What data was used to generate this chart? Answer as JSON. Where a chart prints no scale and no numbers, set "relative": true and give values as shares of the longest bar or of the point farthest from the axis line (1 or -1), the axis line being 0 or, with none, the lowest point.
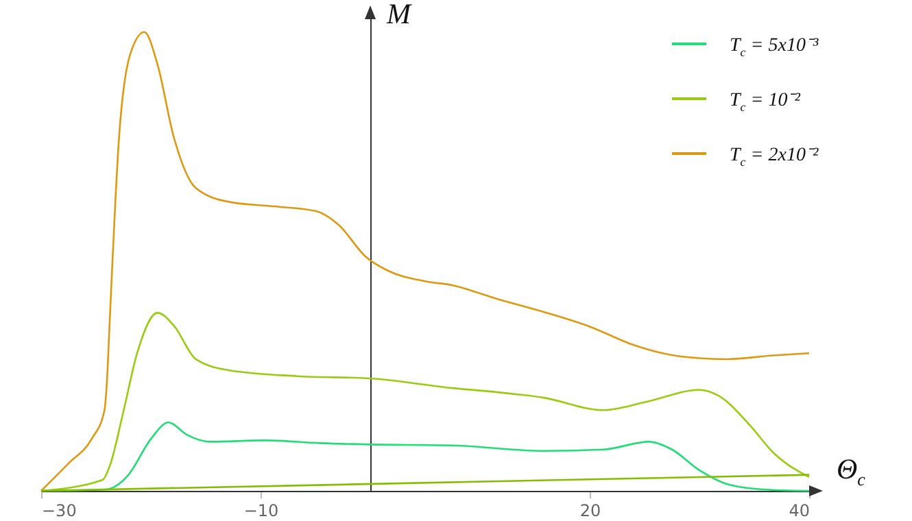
{
  "chart_data": {
    "type": "line",
    "relative": true,
    "xlabel": "Θ$_{c}$",
    "ylabel": "M",
    "xlim": [
      -30,
      40
    ],
    "xticks": [
      -30,
      -10,
      20,
      40
    ],
    "legend": "top right",
    "marker": "none",
    "line_style": "solid",
    "grid": false,
    "series": [
      {
        "name": "T$_{c}$ = 5x10⁻³",
        "color": "#22dd77",
        "x": [
          -30,
          -24.1,
          -22.1,
          -20,
          -18.4,
          -16.7,
          -14.6,
          -9.6,
          -4.6,
          0,
          7.5,
          15.8,
          21.25,
          25.4,
          27.5,
          30,
          32.5,
          35.9,
          40
        ],
        "values": [
          0,
          0.003,
          0.033,
          0.113,
          0.149,
          0.122,
          0.107,
          0.11,
          0.104,
          0.101,
          0.099,
          0.087,
          0.09,
          0.107,
          0.09,
          0.045,
          0.015,
          0.003,
          0
        ]
      },
      {
        "name": "T$_{c}$ = 10⁻²",
        "color": "#99cc11",
        "x": [
          -30,
          -24.4,
          -23.75,
          -22.5,
          -21.25,
          -19.4,
          -17.9,
          -15.9,
          -12.9,
          -6.7,
          0,
          7.5,
          11.6,
          15.8,
          21.25,
          25,
          30,
          31.7,
          34.6,
          36.7,
          40
        ],
        "values": [
          0,
          0.024,
          0.054,
          0.173,
          0.3,
          0.388,
          0.36,
          0.287,
          0.263,
          0.25,
          0.245,
          0.224,
          0.215,
          0.203,
          0.176,
          0.193,
          0.22,
          0.208,
          0.143,
          0.084,
          0.03
        ]
      },
      {
        "name": "T$_{c}$ = 2x10⁻²",
        "color": "#dd9911",
        "x": [
          -30,
          -27.5,
          -25.4,
          -24.25,
          -24,
          -23.75,
          -22.9,
          -21.9,
          -20.6,
          -19.4,
          -17.9,
          -15.9,
          -12.9,
          -8.75,
          -5,
          -2.9,
          -0.4,
          1.6,
          5,
          7.5,
          11.6,
          15.8,
          20,
          24.1,
          28.3,
          32.5,
          36.7,
          40
        ],
        "values": [
          0,
          0.06,
          0.113,
          0.173,
          0.24,
          0.37,
          0.77,
          0.95,
          1,
          0.93,
          0.77,
          0.66,
          0.63,
          0.62,
          0.61,
          0.58,
          0.51,
          0.48,
          0.457,
          0.448,
          0.418,
          0.39,
          0.358,
          0.317,
          0.293,
          0.287,
          0.295,
          0.3
        ]
      },
      {
        "color": "#84bd00",
        "x": [
          -30,
          40
        ],
        "values": [
          0,
          0.035
        ]
      }
    ]
  }
}
